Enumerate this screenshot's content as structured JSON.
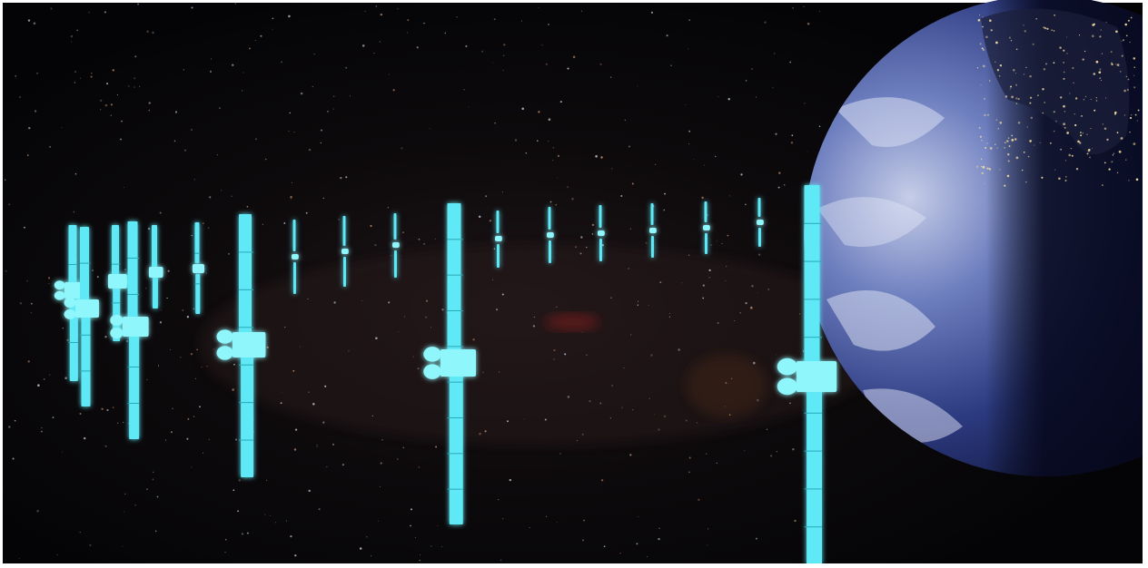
{
  "scene": {
    "subject": "satellite-constellation-orbiting-earth",
    "colors": {
      "space": "#050508",
      "satellite_glow": "#5fe8f5",
      "satellite_core": "#8ff6fb",
      "earth_ocean": "#3d4f9a",
      "earth_cloud": "#c9d2ee",
      "earth_night": "#0a0d24",
      "city_lights": "#f2d9a0",
      "frame": "#ffffff"
    },
    "icons": [
      "satellite-icon",
      "earth-globe-icon",
      "starfield"
    ]
  }
}
